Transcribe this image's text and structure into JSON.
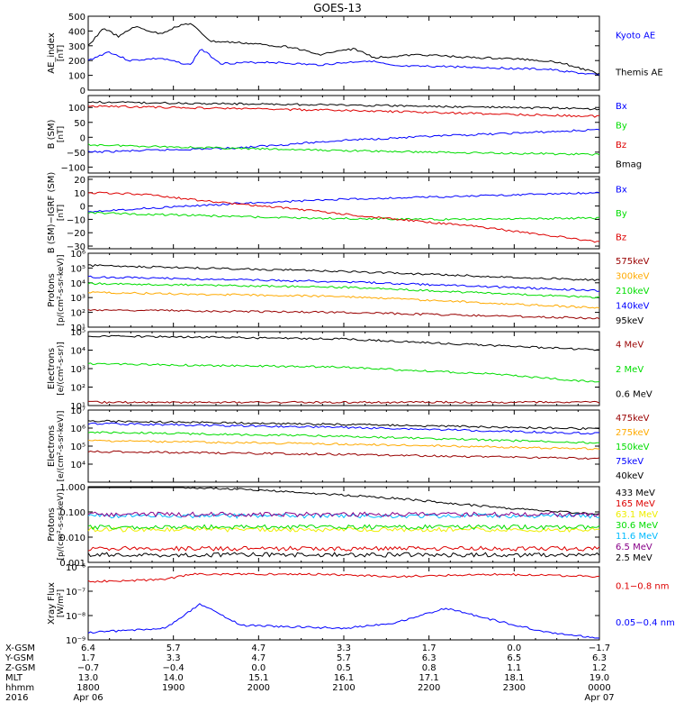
{
  "title": "GOES-13",
  "colors": {
    "black": "#000000",
    "blue": "#0000ff",
    "green": "#00dd00",
    "red": "#dd0000",
    "orange": "#ffaa00",
    "purple": "#880088",
    "cyan": "#00bbff",
    "yellow": "#eeee00",
    "darkred": "#990000"
  },
  "chart_data": [
    {
      "type": "line",
      "ylabel": [
        "AE_index",
        "[nT]"
      ],
      "yscale": "linear",
      "ylim": [
        0,
        500
      ],
      "yticks": [
        0,
        100,
        200,
        300,
        400,
        500
      ],
      "yticklabels": [
        "0",
        "100",
        "200",
        "300",
        "400",
        "500"
      ],
      "series": [
        {
          "name": "Kyoto AE",
          "color": "blue",
          "points": [
            [
              0,
              200
            ],
            [
              0.04,
              260
            ],
            [
              0.08,
              200
            ],
            [
              0.14,
              215
            ],
            [
              0.2,
              170
            ],
            [
              0.22,
              280
            ],
            [
              0.26,
              180
            ],
            [
              0.35,
              190
            ],
            [
              0.45,
              170
            ],
            [
              0.55,
              200
            ],
            [
              0.6,
              160
            ],
            [
              0.7,
              160
            ],
            [
              0.8,
              150
            ],
            [
              0.9,
              140
            ],
            [
              1,
              100
            ]
          ]
        },
        {
          "name": "Themis AE",
          "color": "black",
          "points": [
            [
              0,
              300
            ],
            [
              0.03,
              420
            ],
            [
              0.06,
              360
            ],
            [
              0.09,
              430
            ],
            [
              0.14,
              380
            ],
            [
              0.18,
              440
            ],
            [
              0.2,
              450
            ],
            [
              0.24,
              330
            ],
            [
              0.3,
              320
            ],
            [
              0.4,
              290
            ],
            [
              0.45,
              240
            ],
            [
              0.52,
              280
            ],
            [
              0.56,
              220
            ],
            [
              0.65,
              240
            ],
            [
              0.75,
              220
            ],
            [
              0.85,
              210
            ],
            [
              0.92,
              190
            ],
            [
              1,
              110
            ]
          ]
        }
      ]
    },
    {
      "type": "line",
      "ylabel": [
        "B (SM)",
        "[nT]"
      ],
      "yscale": "linear",
      "ylim": [
        -120,
        140
      ],
      "yticks": [
        -100,
        -50,
        0,
        50,
        100
      ],
      "yticklabels": [
        "−100",
        "−50",
        "0",
        "50",
        "100"
      ],
      "series": [
        {
          "name": "Bx",
          "color": "blue",
          "points": [
            [
              0,
              -50
            ],
            [
              0.3,
              -35
            ],
            [
              0.5,
              -10
            ],
            [
              0.7,
              5
            ],
            [
              1,
              25
            ]
          ]
        },
        {
          "name": "By",
          "color": "green",
          "points": [
            [
              0,
              -25
            ],
            [
              0.3,
              -38
            ],
            [
              0.6,
              -48
            ],
            [
              1,
              -58
            ]
          ]
        },
        {
          "name": "Bz",
          "color": "red",
          "points": [
            [
              0,
              105
            ],
            [
              0.5,
              90
            ],
            [
              1,
              70
            ]
          ]
        },
        {
          "name": "Bmag",
          "color": "black",
          "points": [
            [
              0,
              118
            ],
            [
              0.5,
              108
            ],
            [
              1,
              95
            ]
          ]
        }
      ]
    },
    {
      "type": "line",
      "ylabel": [
        "B (SM)−IGRF (SM)",
        "[nT]"
      ],
      "yscale": "linear",
      "ylim": [
        -32,
        22
      ],
      "yticks": [
        -30,
        -20,
        -10,
        0,
        10,
        20
      ],
      "yticklabels": [
        "−30",
        "−20",
        "−10",
        "0",
        "10",
        "20"
      ],
      "series": [
        {
          "name": "Bx",
          "color": "blue",
          "points": [
            [
              0,
              -4
            ],
            [
              0.15,
              -1
            ],
            [
              0.3,
              2
            ],
            [
              0.5,
              5
            ],
            [
              0.7,
              7
            ],
            [
              0.9,
              9
            ],
            [
              1,
              10
            ]
          ]
        },
        {
          "name": "By",
          "color": "green",
          "points": [
            [
              0,
              -5
            ],
            [
              0.2,
              -7
            ],
            [
              0.4,
              -9
            ],
            [
              0.7,
              -10
            ],
            [
              1,
              -9
            ]
          ]
        },
        {
          "name": "Bz",
          "color": "red",
          "points": [
            [
              0,
              10
            ],
            [
              0.1,
              9
            ],
            [
              0.25,
              3
            ],
            [
              0.4,
              -2
            ],
            [
              0.55,
              -8
            ],
            [
              0.75,
              -15
            ],
            [
              0.9,
              -22
            ],
            [
              1,
              -27
            ]
          ]
        }
      ]
    },
    {
      "type": "line",
      "ylabel": [
        "Protons",
        "[p/(cm²-s-sr-keV)]"
      ],
      "yscale": "log",
      "ylim": [
        10,
        1000000
      ],
      "yticks": [
        10,
        100,
        1000,
        10000,
        100000,
        1000000
      ],
      "yticklabels": [
        "10¹",
        "10²",
        "10³",
        "10⁴",
        "10⁵",
        "10⁶"
      ],
      "series": [
        {
          "name": "575keV",
          "color": "darkred",
          "points": [
            [
              0,
              150
            ],
            [
              0.5,
              100
            ],
            [
              1,
              40
            ]
          ]
        },
        {
          "name": "300keV",
          "color": "orange",
          "points": [
            [
              0,
              2200
            ],
            [
              0.5,
              1200
            ],
            [
              1,
              200
            ]
          ]
        },
        {
          "name": "210keV",
          "color": "green",
          "points": [
            [
              0,
              9000
            ],
            [
              0.5,
              5000
            ],
            [
              1,
              1000
            ]
          ]
        },
        {
          "name": "140keV",
          "color": "blue",
          "points": [
            [
              0,
              25000
            ],
            [
              0.5,
              12000
            ],
            [
              1,
              3000
            ]
          ]
        },
        {
          "name": "95keV",
          "color": "black",
          "points": [
            [
              0,
              150000
            ],
            [
              0.5,
              60000
            ],
            [
              1,
              15000
            ]
          ]
        }
      ]
    },
    {
      "type": "line",
      "ylabel": [
        "Electrons",
        "[e/(cm²-s-sr)]"
      ],
      "yscale": "log",
      "ylim": [
        10,
        100000
      ],
      "yticks": [
        10,
        100,
        1000,
        10000,
        100000
      ],
      "yticklabels": [
        "10¹",
        "10²",
        "10³",
        "10⁴",
        "10⁵"
      ],
      "series": [
        {
          "name": "4 MeV",
          "color": "darkred",
          "points": [
            [
              0,
              15
            ],
            [
              0.5,
              15
            ],
            [
              1,
              15
            ]
          ]
        },
        {
          "name": "2 MeV",
          "color": "green",
          "points": [
            [
              0,
              1800
            ],
            [
              0.5,
              1200
            ],
            [
              0.8,
              500
            ],
            [
              1,
              180
            ]
          ]
        },
        {
          "name": "0.6 MeV",
          "color": "black",
          "points": [
            [
              0,
              60000
            ],
            [
              0.5,
              40000
            ],
            [
              1,
              10000
            ]
          ]
        }
      ]
    },
    {
      "type": "line",
      "ylabel": [
        "Electrons",
        "[e/(cm²-s-sr-keV)]"
      ],
      "yscale": "log",
      "ylim": [
        1000,
        10000000
      ],
      "yticks": [
        10000,
        100000,
        1000000,
        10000000
      ],
      "yticklabels": [
        "10⁴",
        "10⁵",
        "10⁶",
        "10⁷"
      ],
      "series": [
        {
          "name": "475keV",
          "color": "darkred",
          "points": [
            [
              0,
              50000
            ],
            [
              0.5,
              35000
            ],
            [
              1,
              20000
            ]
          ]
        },
        {
          "name": "275keV",
          "color": "orange",
          "points": [
            [
              0,
              200000
            ],
            [
              0.5,
              130000
            ],
            [
              1,
              70000
            ]
          ]
        },
        {
          "name": "150keV",
          "color": "green",
          "points": [
            [
              0,
              600000
            ],
            [
              0.5,
              350000
            ],
            [
              1,
              150000
            ]
          ]
        },
        {
          "name": "75keV",
          "color": "blue",
          "points": [
            [
              0,
              1800000
            ],
            [
              0.5,
              1100000
            ],
            [
              1,
              500000
            ]
          ]
        },
        {
          "name": "40keV",
          "color": "black",
          "points": [
            [
              0,
              2500000
            ],
            [
              0.5,
              1600000
            ],
            [
              1,
              900000
            ]
          ]
        }
      ]
    },
    {
      "type": "line",
      "ylabel": [
        "Protons",
        "[p/(cm²-s-sr-keV)]"
      ],
      "yscale": "log",
      "ylim": [
        0.001,
        1
      ],
      "yticks": [
        0.001,
        0.01,
        0.1,
        1
      ],
      "yticklabels": [
        "0.001",
        "0.010",
        "0.100",
        "1.000"
      ],
      "series": [
        {
          "name": "433 MeV",
          "color": "black",
          "points": [
            [
              0,
              1.2
            ],
            [
              0.3,
              0.8
            ],
            [
              0.6,
              0.35
            ],
            [
              0.8,
              0.15
            ],
            [
              1,
              0.08
            ]
          ]
        },
        {
          "name": "165 MeV",
          "color": "red",
          "points": [
            [
              0,
              0.0035
            ],
            [
              1,
              0.0035
            ]
          ]
        },
        {
          "name": "63.1 MeV",
          "color": "yellow",
          "points": [
            [
              0,
              0.02
            ],
            [
              1,
              0.02
            ]
          ]
        },
        {
          "name": "30.6 MeV",
          "color": "green",
          "points": [
            [
              0,
              0.025
            ],
            [
              1,
              0.025
            ]
          ]
        },
        {
          "name": "11.6 MeV",
          "color": "cyan",
          "points": [
            [
              0,
              0.07
            ],
            [
              1,
              0.07
            ]
          ]
        },
        {
          "name": "6.5 MeV",
          "color": "purple",
          "points": [
            [
              0,
              0.08
            ],
            [
              1,
              0.08
            ]
          ]
        },
        {
          "name": "2.5 MeV",
          "color": "black",
          "points": [
            [
              0,
              0.002
            ],
            [
              1,
              0.002
            ]
          ]
        }
      ]
    },
    {
      "type": "line",
      "ylabel": [
        "Xray Flux",
        "[W/m²]"
      ],
      "yscale": "log",
      "ylim": [
        1e-09,
        1e-06
      ],
      "yticks": [
        1e-09,
        1e-08,
        1e-07,
        1e-06
      ],
      "yticklabels": [
        "10⁻⁹",
        "10⁻⁸",
        "10⁻⁷",
        "10⁻⁶"
      ],
      "series": [
        {
          "name": "0.1−0.8 nm",
          "color": "red",
          "points": [
            [
              0,
              2.5e-07
            ],
            [
              0.15,
              3e-07
            ],
            [
              0.2,
              5e-07
            ],
            [
              0.45,
              5e-07
            ],
            [
              0.6,
              4e-07
            ],
            [
              0.8,
              5e-07
            ],
            [
              1,
              4e-07
            ]
          ]
        },
        {
          "name": "0.05−0.4 nm",
          "color": "blue",
          "points": [
            [
              0,
              2e-09
            ],
            [
              0.15,
              3e-09
            ],
            [
              0.22,
              3e-08
            ],
            [
              0.3,
              4e-09
            ],
            [
              0.5,
              3e-09
            ],
            [
              0.6,
              5e-09
            ],
            [
              0.7,
              2e-08
            ],
            [
              0.8,
              6e-09
            ],
            [
              0.9,
              2e-09
            ],
            [
              1,
              1.2e-09
            ]
          ]
        }
      ]
    }
  ],
  "x_axis": {
    "row_labels": [
      "X-GSM",
      "Y-GSM",
      "Z-GSM",
      "MLT",
      "hhmm",
      "2016"
    ],
    "columns": [
      {
        "values": [
          "6.4",
          "1.7",
          "−0.7",
          "13.0",
          "1800",
          "Apr 06"
        ]
      },
      {
        "values": [
          "5.7",
          "3.3",
          "−0.4",
          "14.0",
          "1900",
          ""
        ]
      },
      {
        "values": [
          "4.7",
          "4.7",
          "0.0",
          "15.1",
          "2000",
          ""
        ]
      },
      {
        "values": [
          "3.3",
          "5.7",
          "0.5",
          "16.1",
          "2100",
          ""
        ]
      },
      {
        "values": [
          "1.7",
          "6.3",
          "0.8",
          "17.1",
          "2200",
          ""
        ]
      },
      {
        "values": [
          "0.0",
          "6.5",
          "1.1",
          "18.1",
          "2300",
          ""
        ]
      },
      {
        "values": [
          "−1.7",
          "6.3",
          "1.2",
          "19.0",
          "0000",
          "Apr 07"
        ]
      }
    ]
  }
}
